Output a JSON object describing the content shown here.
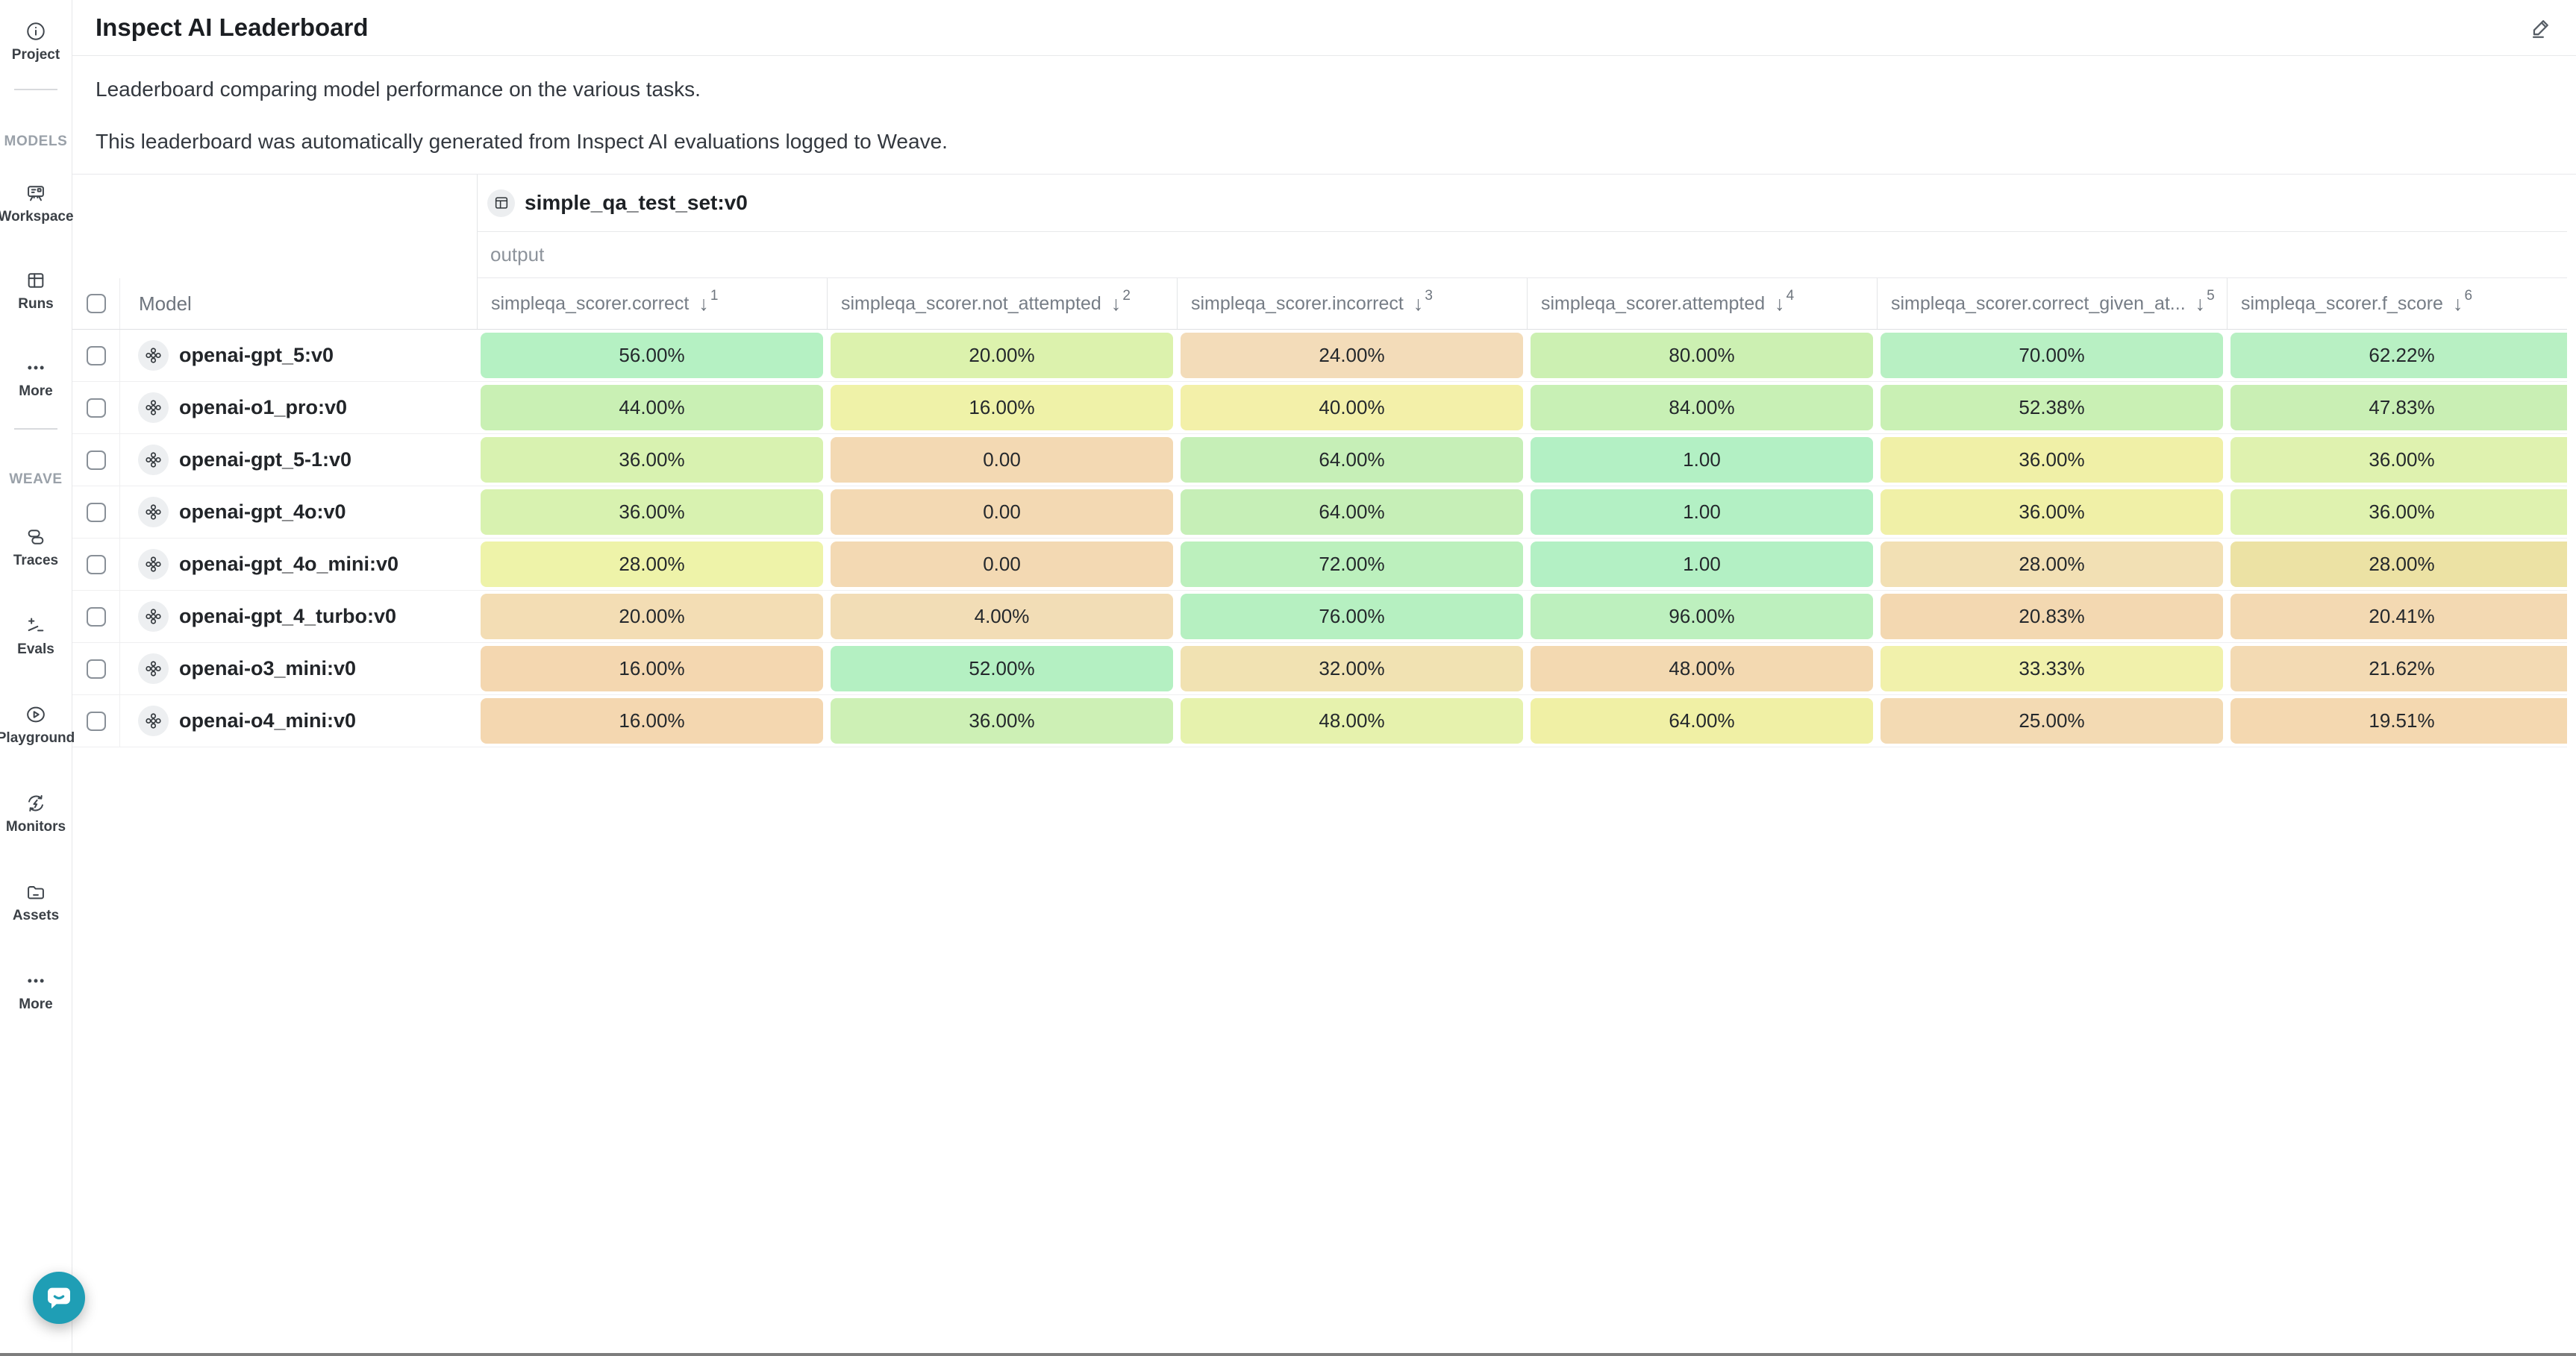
{
  "sidebar": {
    "groups": [
      {
        "label": "",
        "items": [
          {
            "icon": "info-icon",
            "id": "project",
            "label": "Project"
          }
        ]
      },
      {
        "label": "MODELS",
        "items": [
          {
            "icon": "workspace-icon",
            "id": "workspace",
            "label": "Workspace"
          },
          {
            "icon": "runs-icon",
            "id": "runs",
            "label": "Runs"
          },
          {
            "icon": "ellipsis-icon",
            "id": "models-more",
            "label": "More"
          }
        ]
      },
      {
        "label": "WEAVE",
        "items": [
          {
            "icon": "traces-icon",
            "id": "traces",
            "label": "Traces"
          },
          {
            "icon": "evals-icon",
            "id": "evals",
            "label": "Evals"
          },
          {
            "icon": "playground-icon",
            "id": "playground",
            "label": "Playground"
          },
          {
            "icon": "monitors-icon",
            "id": "monitors",
            "label": "Monitors"
          },
          {
            "icon": "assets-icon",
            "id": "assets",
            "label": "Assets"
          },
          {
            "icon": "ellipsis-icon",
            "id": "weave-more",
            "label": "More"
          }
        ]
      }
    ]
  },
  "header": {
    "title": "Inspect AI Leaderboard",
    "edit_icon": "pencil-icon"
  },
  "description": {
    "line1": "Leaderboard comparing model performance on the various tasks.",
    "line2": "This leaderboard was automatically generated from Inspect AI evaluations logged to Weave."
  },
  "table": {
    "dataset_name": "simple_qa_test_set:v0",
    "dataset_icon": "table-icon",
    "group_label": "output",
    "model_column_label": "Model",
    "sort_icon": "↓",
    "columns": [
      {
        "label": "simpleqa_scorer.correct",
        "sort_rank": "1"
      },
      {
        "label": "simpleqa_scorer.not_attempted",
        "sort_rank": "2"
      },
      {
        "label": "simpleqa_scorer.incorrect",
        "sort_rank": "3"
      },
      {
        "label": "simpleqa_scorer.attempted",
        "sort_rank": "4"
      },
      {
        "label": "simpleqa_scorer.correct_given_at...",
        "sort_rank": "5"
      },
      {
        "label": "simpleqa_scorer.f_score",
        "sort_rank": "6"
      }
    ],
    "rows": [
      {
        "model": "openai-gpt_5:v0",
        "cells": [
          {
            "value": "56.00%",
            "color": "#b5f1c3"
          },
          {
            "value": "20.00%",
            "color": "#dcf2ad"
          },
          {
            "value": "24.00%",
            "color": "#f3dcb9"
          },
          {
            "value": "80.00%",
            "color": "#ccf0b2"
          },
          {
            "value": "70.00%",
            "color": "#b8f0c3"
          },
          {
            "value": "62.22%",
            "color": "#b8f0c3"
          }
        ]
      },
      {
        "model": "openai-o1_pro:v0",
        "cells": [
          {
            "value": "44.00%",
            "color": "#c9f0b4"
          },
          {
            "value": "16.00%",
            "color": "#eff2a8"
          },
          {
            "value": "40.00%",
            "color": "#f3f0a9"
          },
          {
            "value": "84.00%",
            "color": "#c8f0b5"
          },
          {
            "value": "52.38%",
            "color": "#c9f0b4"
          },
          {
            "value": "47.83%",
            "color": "#c9efb4"
          }
        ]
      },
      {
        "model": "openai-gpt_5-1:v0",
        "cells": [
          {
            "value": "36.00%",
            "color": "#d8f2b0"
          },
          {
            "value": "0.00",
            "color": "#f3d9b3"
          },
          {
            "value": "64.00%",
            "color": "#c6efb7"
          },
          {
            "value": "1.00",
            "color": "#b3f0c4"
          },
          {
            "value": "36.00%",
            "color": "#f0f0a7"
          },
          {
            "value": "36.00%",
            "color": "#dff2af"
          }
        ]
      },
      {
        "model": "openai-gpt_4o:v0",
        "cells": [
          {
            "value": "36.00%",
            "color": "#d8f2b0"
          },
          {
            "value": "0.00",
            "color": "#f3d9b3"
          },
          {
            "value": "64.00%",
            "color": "#c6efb7"
          },
          {
            "value": "1.00",
            "color": "#b3f0c4"
          },
          {
            "value": "36.00%",
            "color": "#f0f0a7"
          },
          {
            "value": "36.00%",
            "color": "#dff2af"
          }
        ]
      },
      {
        "model": "openai-gpt_4o_mini:v0",
        "cells": [
          {
            "value": "28.00%",
            "color": "#eef3a9"
          },
          {
            "value": "0.00",
            "color": "#f3d9b3"
          },
          {
            "value": "72.00%",
            "color": "#bcf0bd"
          },
          {
            "value": "1.00",
            "color": "#b3f0c4"
          },
          {
            "value": "28.00%",
            "color": "#f2e0b4"
          },
          {
            "value": "28.00%",
            "color": "#ece2a4"
          }
        ]
      },
      {
        "model": "openai-gpt_4_turbo:v0",
        "cells": [
          {
            "value": "20.00%",
            "color": "#f3ddb4"
          },
          {
            "value": "4.00%",
            "color": "#f2ddb6"
          },
          {
            "value": "76.00%",
            "color": "#b6f0c1"
          },
          {
            "value": "96.00%",
            "color": "#bdf0be"
          },
          {
            "value": "20.83%",
            "color": "#f3d8b1"
          },
          {
            "value": "20.41%",
            "color": "#f3d9b2"
          }
        ]
      },
      {
        "model": "openai-o3_mini:v0",
        "cells": [
          {
            "value": "16.00%",
            "color": "#f4d7b0"
          },
          {
            "value": "52.00%",
            "color": "#b4f0c2"
          },
          {
            "value": "32.00%",
            "color": "#f1e2b2"
          },
          {
            "value": "48.00%",
            "color": "#f3d9b1"
          },
          {
            "value": "33.33%",
            "color": "#f1f1ab"
          },
          {
            "value": "21.62%",
            "color": "#f3dab3"
          }
        ]
      },
      {
        "model": "openai-o4_mini:v0",
        "cells": [
          {
            "value": "16.00%",
            "color": "#f4d7b0"
          },
          {
            "value": "36.00%",
            "color": "#cdf0b5"
          },
          {
            "value": "48.00%",
            "color": "#e6f2ad"
          },
          {
            "value": "64.00%",
            "color": "#f0f0a5"
          },
          {
            "value": "25.00%",
            "color": "#f3dab3"
          },
          {
            "value": "19.51%",
            "color": "#f4d8b0"
          }
        ]
      }
    ]
  },
  "colors": {
    "chat_bubble": "#1F9EB5",
    "accent_green": "#b3f0c4",
    "accent_orange": "#f3d9b3"
  }
}
